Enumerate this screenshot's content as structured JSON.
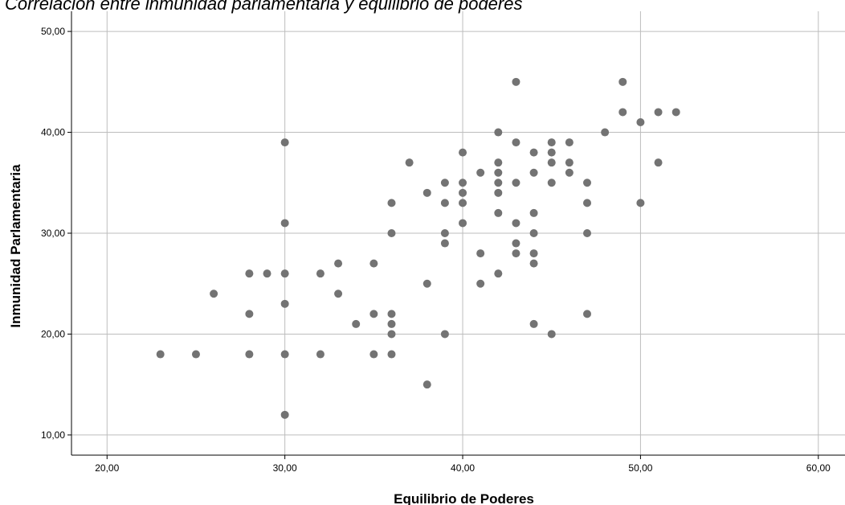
{
  "chart_data": {
    "type": "scatter",
    "title": "Correlación entre inmunidad parlamentaria y equilibrio de poderes",
    "xlabel": "Equilibrio de Poderes",
    "ylabel": "Inmunidad Parlamentaria",
    "xlim": [
      18,
      61.5
    ],
    "ylim": [
      8,
      52
    ],
    "x_ticks": [
      20,
      30,
      40,
      50,
      60
    ],
    "y_ticks": [
      10,
      20,
      30,
      40,
      50
    ],
    "x_tick_labels": [
      "20,00",
      "30,00",
      "40,00",
      "50,00",
      "60,00"
    ],
    "y_tick_labels": [
      "10,00",
      "20,00",
      "30,00",
      "40,00",
      "50,00"
    ],
    "grid": true,
    "marker_color": "#737373",
    "grid_color": "#bdbdbd",
    "points": [
      {
        "x": 23,
        "y": 18
      },
      {
        "x": 25,
        "y": 18
      },
      {
        "x": 26,
        "y": 24
      },
      {
        "x": 28,
        "y": 26
      },
      {
        "x": 28,
        "y": 22
      },
      {
        "x": 28,
        "y": 18
      },
      {
        "x": 29,
        "y": 26
      },
      {
        "x": 30,
        "y": 39
      },
      {
        "x": 30,
        "y": 31
      },
      {
        "x": 30,
        "y": 26
      },
      {
        "x": 30,
        "y": 23
      },
      {
        "x": 30,
        "y": 18
      },
      {
        "x": 30,
        "y": 12
      },
      {
        "x": 32,
        "y": 26
      },
      {
        "x": 32,
        "y": 18
      },
      {
        "x": 33,
        "y": 27
      },
      {
        "x": 33,
        "y": 24
      },
      {
        "x": 34,
        "y": 21
      },
      {
        "x": 35,
        "y": 27
      },
      {
        "x": 35,
        "y": 22
      },
      {
        "x": 35,
        "y": 18
      },
      {
        "x": 36,
        "y": 33
      },
      {
        "x": 36,
        "y": 30
      },
      {
        "x": 36,
        "y": 22
      },
      {
        "x": 36,
        "y": 21
      },
      {
        "x": 36,
        "y": 20
      },
      {
        "x": 36,
        "y": 18
      },
      {
        "x": 37,
        "y": 37
      },
      {
        "x": 38,
        "y": 34
      },
      {
        "x": 38,
        "y": 25
      },
      {
        "x": 38,
        "y": 15
      },
      {
        "x": 39,
        "y": 35
      },
      {
        "x": 39,
        "y": 33
      },
      {
        "x": 39,
        "y": 30
      },
      {
        "x": 39,
        "y": 29
      },
      {
        "x": 39,
        "y": 20
      },
      {
        "x": 40,
        "y": 38
      },
      {
        "x": 40,
        "y": 35
      },
      {
        "x": 40,
        "y": 34
      },
      {
        "x": 40,
        "y": 33
      },
      {
        "x": 40,
        "y": 31
      },
      {
        "x": 41,
        "y": 36
      },
      {
        "x": 41,
        "y": 28
      },
      {
        "x": 41,
        "y": 25
      },
      {
        "x": 42,
        "y": 40
      },
      {
        "x": 42,
        "y": 37
      },
      {
        "x": 42,
        "y": 36
      },
      {
        "x": 42,
        "y": 35
      },
      {
        "x": 42,
        "y": 34
      },
      {
        "x": 42,
        "y": 32
      },
      {
        "x": 42,
        "y": 26
      },
      {
        "x": 43,
        "y": 45
      },
      {
        "x": 43,
        "y": 39
      },
      {
        "x": 43,
        "y": 35
      },
      {
        "x": 43,
        "y": 31
      },
      {
        "x": 43,
        "y": 29
      },
      {
        "x": 43,
        "y": 28
      },
      {
        "x": 44,
        "y": 38
      },
      {
        "x": 44,
        "y": 36
      },
      {
        "x": 44,
        "y": 32
      },
      {
        "x": 44,
        "y": 30
      },
      {
        "x": 44,
        "y": 28
      },
      {
        "x": 44,
        "y": 27
      },
      {
        "x": 44,
        "y": 21
      },
      {
        "x": 45,
        "y": 39
      },
      {
        "x": 45,
        "y": 38
      },
      {
        "x": 45,
        "y": 37
      },
      {
        "x": 45,
        "y": 35
      },
      {
        "x": 45,
        "y": 20
      },
      {
        "x": 46,
        "y": 39
      },
      {
        "x": 46,
        "y": 37
      },
      {
        "x": 46,
        "y": 36
      },
      {
        "x": 47,
        "y": 35
      },
      {
        "x": 47,
        "y": 33
      },
      {
        "x": 47,
        "y": 30
      },
      {
        "x": 47,
        "y": 22
      },
      {
        "x": 48,
        "y": 40
      },
      {
        "x": 49,
        "y": 45
      },
      {
        "x": 49,
        "y": 42
      },
      {
        "x": 50,
        "y": 41
      },
      {
        "x": 50,
        "y": 33
      },
      {
        "x": 51,
        "y": 42
      },
      {
        "x": 51,
        "y": 37
      },
      {
        "x": 52,
        "y": 42
      }
    ]
  }
}
